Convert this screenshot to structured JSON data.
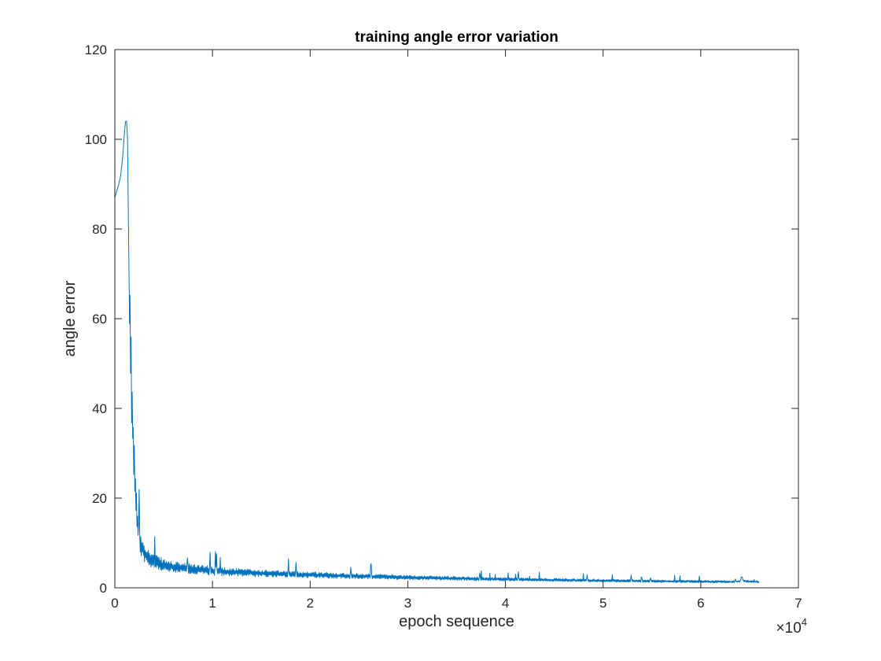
{
  "chart_data": {
    "type": "line",
    "title": "training angle error variation",
    "xlabel": "epoch sequence",
    "ylabel": "angle error",
    "xlim": [
      0,
      70000
    ],
    "ylim": [
      0,
      120
    ],
    "x_ticks": [
      0,
      10000,
      20000,
      30000,
      40000,
      50000,
      60000,
      70000
    ],
    "x_tick_labels": [
      "0",
      "1",
      "2",
      "3",
      "4",
      "5",
      "6",
      "7"
    ],
    "x_multiplier_base": "×10",
    "x_multiplier_exponent": "4",
    "y_ticks": [
      0,
      20,
      40,
      60,
      80,
      100,
      120
    ],
    "y_tick_labels": [
      "0",
      "20",
      "40",
      "60",
      "80",
      "100",
      "120"
    ],
    "grid": false,
    "box": true,
    "colors": {
      "line": "#0072bd",
      "axes": "#262626"
    },
    "series": [
      {
        "x": [
          0,
          200,
          400,
          600,
          800,
          1000,
          1100,
          1200,
          1300,
          1350,
          1400,
          1450,
          1500,
          1600,
          1700,
          1800,
          1900,
          2000,
          2100,
          2200,
          2300,
          2400,
          2500,
          2700,
          3000,
          3500,
          4000,
          5000,
          6000,
          8000,
          10000,
          12000,
          15000,
          18000,
          20000,
          25000,
          30000,
          35000,
          40000,
          45000,
          50000,
          55000,
          60000,
          63000,
          64000,
          64200,
          64400,
          66000
        ],
        "y": [
          87,
          88.5,
          90,
          92,
          96,
          102,
          104,
          104,
          100,
          90,
          80,
          70,
          62,
          55,
          45,
          38,
          32,
          27,
          22,
          18,
          15,
          13,
          11.5,
          9.5,
          8,
          6.5,
          6,
          5,
          4.6,
          4.2,
          3.8,
          3.5,
          3.2,
          3,
          2.9,
          2.6,
          2.3,
          2.1,
          1.9,
          1.75,
          1.6,
          1.5,
          1.4,
          1.35,
          1.4,
          2.5,
          1.5,
          1.3
        ],
        "noise": [
          0,
          0,
          0,
          0,
          0,
          0,
          0,
          0,
          0,
          0,
          0,
          0,
          6,
          8,
          8,
          7,
          6,
          5,
          4.5,
          4,
          3.6,
          3.2,
          3,
          2.6,
          2.2,
          1.8,
          1.6,
          1.4,
          1.2,
          1.1,
          1,
          0.9,
          0.8,
          0.7,
          0.7,
          0.6,
          0.5,
          0.45,
          0.4,
          0.35,
          0.32,
          0.3,
          0.28,
          0.25,
          0.25,
          0.25,
          0.25,
          0.25
        ],
        "noisy_from": 1500
      }
    ]
  }
}
